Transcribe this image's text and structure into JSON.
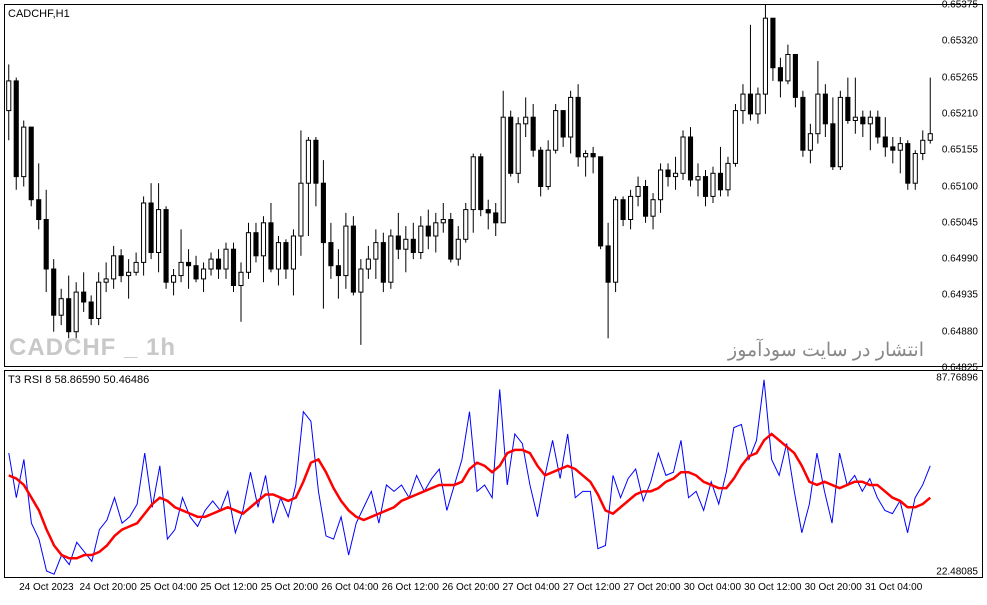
{
  "price_chart": {
    "title": "CADCHF,H1",
    "watermark_left": "CADCHF _ 1h",
    "watermark_right": "انتشار در سایت سودآموز",
    "ymin": 0.64825,
    "ymax": 0.65375,
    "yticks": [
      0.64825,
      0.6488,
      0.64935,
      0.6499,
      0.65045,
      0.651,
      0.65155,
      0.6521,
      0.65265,
      0.6532,
      0.65375
    ],
    "candle_border": "#000000",
    "candle_up_fill": "#ffffff",
    "candle_down_fill": "#000000",
    "candles": [
      {
        "o": 0.65215,
        "h": 0.65285,
        "l": 0.6517,
        "c": 0.6526
      },
      {
        "o": 0.6526,
        "h": 0.65265,
        "l": 0.65095,
        "c": 0.65115
      },
      {
        "o": 0.65115,
        "h": 0.652,
        "l": 0.651,
        "c": 0.6519
      },
      {
        "o": 0.6519,
        "h": 0.6519,
        "l": 0.6507,
        "c": 0.6508
      },
      {
        "o": 0.6508,
        "h": 0.65135,
        "l": 0.65035,
        "c": 0.6505
      },
      {
        "o": 0.6505,
        "h": 0.65095,
        "l": 0.6494,
        "c": 0.64975
      },
      {
        "o": 0.64975,
        "h": 0.6499,
        "l": 0.6488,
        "c": 0.64905
      },
      {
        "o": 0.64905,
        "h": 0.64945,
        "l": 0.6489,
        "c": 0.6493
      },
      {
        "o": 0.6493,
        "h": 0.64965,
        "l": 0.6487,
        "c": 0.6488
      },
      {
        "o": 0.6488,
        "h": 0.64955,
        "l": 0.6487,
        "c": 0.6494
      },
      {
        "o": 0.6494,
        "h": 0.6497,
        "l": 0.6491,
        "c": 0.64925
      },
      {
        "o": 0.64925,
        "h": 0.64935,
        "l": 0.6489,
        "c": 0.649
      },
      {
        "o": 0.649,
        "h": 0.6497,
        "l": 0.6489,
        "c": 0.64955
      },
      {
        "o": 0.64955,
        "h": 0.64985,
        "l": 0.6494,
        "c": 0.6496
      },
      {
        "o": 0.6496,
        "h": 0.6501,
        "l": 0.64945,
        "c": 0.64995
      },
      {
        "o": 0.64995,
        "h": 0.65005,
        "l": 0.64955,
        "c": 0.64965
      },
      {
        "o": 0.64965,
        "h": 0.6499,
        "l": 0.6493,
        "c": 0.6497
      },
      {
        "o": 0.6497,
        "h": 0.65,
        "l": 0.64965,
        "c": 0.64985
      },
      {
        "o": 0.64985,
        "h": 0.65085,
        "l": 0.64965,
        "c": 0.65075
      },
      {
        "o": 0.65075,
        "h": 0.65105,
        "l": 0.6499,
        "c": 0.65
      },
      {
        "o": 0.65,
        "h": 0.65105,
        "l": 0.6497,
        "c": 0.65065
      },
      {
        "o": 0.65065,
        "h": 0.6507,
        "l": 0.64945,
        "c": 0.64955
      },
      {
        "o": 0.64955,
        "h": 0.64975,
        "l": 0.64935,
        "c": 0.64965
      },
      {
        "o": 0.64965,
        "h": 0.65035,
        "l": 0.64955,
        "c": 0.64985
      },
      {
        "o": 0.64985,
        "h": 0.65005,
        "l": 0.64945,
        "c": 0.6498
      },
      {
        "o": 0.6498,
        "h": 0.64995,
        "l": 0.64955,
        "c": 0.6496
      },
      {
        "o": 0.6496,
        "h": 0.64985,
        "l": 0.6494,
        "c": 0.64975
      },
      {
        "o": 0.64975,
        "h": 0.65,
        "l": 0.64965,
        "c": 0.6499
      },
      {
        "o": 0.6499,
        "h": 0.65005,
        "l": 0.6496,
        "c": 0.64975
      },
      {
        "o": 0.64975,
        "h": 0.65015,
        "l": 0.6496,
        "c": 0.65005
      },
      {
        "o": 0.65005,
        "h": 0.65015,
        "l": 0.6494,
        "c": 0.6495
      },
      {
        "o": 0.6495,
        "h": 0.64985,
        "l": 0.64895,
        "c": 0.6497
      },
      {
        "o": 0.6497,
        "h": 0.65045,
        "l": 0.6496,
        "c": 0.6503
      },
      {
        "o": 0.6503,
        "h": 0.65045,
        "l": 0.64985,
        "c": 0.64995
      },
      {
        "o": 0.64995,
        "h": 0.65055,
        "l": 0.64955,
        "c": 0.65045
      },
      {
        "o": 0.65045,
        "h": 0.65075,
        "l": 0.6497,
        "c": 0.64975
      },
      {
        "o": 0.64975,
        "h": 0.65025,
        "l": 0.6495,
        "c": 0.65015
      },
      {
        "o": 0.65015,
        "h": 0.6502,
        "l": 0.6496,
        "c": 0.64975
      },
      {
        "o": 0.64975,
        "h": 0.65035,
        "l": 0.64935,
        "c": 0.65025
      },
      {
        "o": 0.65025,
        "h": 0.65185,
        "l": 0.64995,
        "c": 0.65105
      },
      {
        "o": 0.65105,
        "h": 0.65175,
        "l": 0.65025,
        "c": 0.6517
      },
      {
        "o": 0.6517,
        "h": 0.65175,
        "l": 0.6507,
        "c": 0.65105
      },
      {
        "o": 0.65105,
        "h": 0.6514,
        "l": 0.64915,
        "c": 0.65015
      },
      {
        "o": 0.65015,
        "h": 0.65045,
        "l": 0.6496,
        "c": 0.6498
      },
      {
        "o": 0.6498,
        "h": 0.65005,
        "l": 0.6493,
        "c": 0.64965
      },
      {
        "o": 0.64965,
        "h": 0.6506,
        "l": 0.64945,
        "c": 0.6504
      },
      {
        "o": 0.6504,
        "h": 0.65055,
        "l": 0.64935,
        "c": 0.6494
      },
      {
        "o": 0.6494,
        "h": 0.6499,
        "l": 0.6486,
        "c": 0.64975
      },
      {
        "o": 0.64975,
        "h": 0.6501,
        "l": 0.6496,
        "c": 0.6499
      },
      {
        "o": 0.6499,
        "h": 0.65035,
        "l": 0.6496,
        "c": 0.65015
      },
      {
        "o": 0.65015,
        "h": 0.6503,
        "l": 0.6494,
        "c": 0.64955
      },
      {
        "o": 0.64955,
        "h": 0.65035,
        "l": 0.64945,
        "c": 0.65025
      },
      {
        "o": 0.65025,
        "h": 0.6506,
        "l": 0.6499,
        "c": 0.65005
      },
      {
        "o": 0.65005,
        "h": 0.6504,
        "l": 0.6497,
        "c": 0.6502
      },
      {
        "o": 0.6502,
        "h": 0.65045,
        "l": 0.6499,
        "c": 0.65
      },
      {
        "o": 0.65,
        "h": 0.65055,
        "l": 0.6499,
        "c": 0.6504
      },
      {
        "o": 0.6504,
        "h": 0.65065,
        "l": 0.65005,
        "c": 0.65025
      },
      {
        "o": 0.65025,
        "h": 0.6506,
        "l": 0.65,
        "c": 0.65045
      },
      {
        "o": 0.65045,
        "h": 0.65075,
        "l": 0.6503,
        "c": 0.6505
      },
      {
        "o": 0.6505,
        "h": 0.6506,
        "l": 0.64985,
        "c": 0.6499
      },
      {
        "o": 0.6499,
        "h": 0.6504,
        "l": 0.6498,
        "c": 0.6502
      },
      {
        "o": 0.6502,
        "h": 0.65075,
        "l": 0.65015,
        "c": 0.65065
      },
      {
        "o": 0.65065,
        "h": 0.6515,
        "l": 0.6503,
        "c": 0.65145
      },
      {
        "o": 0.65145,
        "h": 0.6515,
        "l": 0.65055,
        "c": 0.65065
      },
      {
        "o": 0.65065,
        "h": 0.6508,
        "l": 0.65035,
        "c": 0.6506
      },
      {
        "o": 0.6506,
        "h": 0.65075,
        "l": 0.65025,
        "c": 0.65045
      },
      {
        "o": 0.65045,
        "h": 0.65245,
        "l": 0.65045,
        "c": 0.65205
      },
      {
        "o": 0.65205,
        "h": 0.65215,
        "l": 0.65115,
        "c": 0.6512
      },
      {
        "o": 0.6512,
        "h": 0.65205,
        "l": 0.65105,
        "c": 0.65195
      },
      {
        "o": 0.65195,
        "h": 0.65235,
        "l": 0.65175,
        "c": 0.65205
      },
      {
        "o": 0.65205,
        "h": 0.65225,
        "l": 0.65145,
        "c": 0.65155
      },
      {
        "o": 0.65155,
        "h": 0.6516,
        "l": 0.65085,
        "c": 0.651
      },
      {
        "o": 0.651,
        "h": 0.6517,
        "l": 0.65095,
        "c": 0.65155
      },
      {
        "o": 0.65155,
        "h": 0.65225,
        "l": 0.6515,
        "c": 0.65215
      },
      {
        "o": 0.65215,
        "h": 0.65215,
        "l": 0.6516,
        "c": 0.65175
      },
      {
        "o": 0.65175,
        "h": 0.65245,
        "l": 0.6515,
        "c": 0.65235
      },
      {
        "o": 0.65235,
        "h": 0.65255,
        "l": 0.6513,
        "c": 0.65145
      },
      {
        "o": 0.65145,
        "h": 0.65155,
        "l": 0.65115,
        "c": 0.6515
      },
      {
        "o": 0.6515,
        "h": 0.6516,
        "l": 0.6512,
        "c": 0.65145
      },
      {
        "o": 0.65145,
        "h": 0.65145,
        "l": 0.65005,
        "c": 0.6501
      },
      {
        "o": 0.6501,
        "h": 0.65045,
        "l": 0.6487,
        "c": 0.64955
      },
      {
        "o": 0.64955,
        "h": 0.65085,
        "l": 0.6494,
        "c": 0.6508
      },
      {
        "o": 0.6508,
        "h": 0.65085,
        "l": 0.6504,
        "c": 0.6505
      },
      {
        "o": 0.6505,
        "h": 0.65095,
        "l": 0.65035,
        "c": 0.65085
      },
      {
        "o": 0.65085,
        "h": 0.65115,
        "l": 0.6507,
        "c": 0.651
      },
      {
        "o": 0.651,
        "h": 0.6511,
        "l": 0.65045,
        "c": 0.65055
      },
      {
        "o": 0.65055,
        "h": 0.6509,
        "l": 0.65035,
        "c": 0.6508
      },
      {
        "o": 0.6508,
        "h": 0.65135,
        "l": 0.6506,
        "c": 0.65125
      },
      {
        "o": 0.65125,
        "h": 0.65135,
        "l": 0.651,
        "c": 0.65115
      },
      {
        "o": 0.65115,
        "h": 0.65145,
        "l": 0.65095,
        "c": 0.6512
      },
      {
        "o": 0.6512,
        "h": 0.65185,
        "l": 0.6511,
        "c": 0.65175
      },
      {
        "o": 0.65175,
        "h": 0.6519,
        "l": 0.651,
        "c": 0.6511
      },
      {
        "o": 0.6511,
        "h": 0.65135,
        "l": 0.65085,
        "c": 0.65115
      },
      {
        "o": 0.65115,
        "h": 0.65125,
        "l": 0.6507,
        "c": 0.65085
      },
      {
        "o": 0.65085,
        "h": 0.6513,
        "l": 0.65075,
        "c": 0.6512
      },
      {
        "o": 0.6512,
        "h": 0.6516,
        "l": 0.65085,
        "c": 0.65095
      },
      {
        "o": 0.65095,
        "h": 0.65145,
        "l": 0.65085,
        "c": 0.65135
      },
      {
        "o": 0.65135,
        "h": 0.65225,
        "l": 0.6513,
        "c": 0.65215
      },
      {
        "o": 0.65215,
        "h": 0.65255,
        "l": 0.65195,
        "c": 0.6524
      },
      {
        "o": 0.6524,
        "h": 0.65345,
        "l": 0.652,
        "c": 0.6521
      },
      {
        "o": 0.6521,
        "h": 0.6525,
        "l": 0.65195,
        "c": 0.6524
      },
      {
        "o": 0.6524,
        "h": 0.65375,
        "l": 0.6521,
        "c": 0.65355
      },
      {
        "o": 0.65355,
        "h": 0.65355,
        "l": 0.6526,
        "c": 0.6528
      },
      {
        "o": 0.6528,
        "h": 0.65295,
        "l": 0.65235,
        "c": 0.6526
      },
      {
        "o": 0.6526,
        "h": 0.65315,
        "l": 0.65255,
        "c": 0.653
      },
      {
        "o": 0.653,
        "h": 0.653,
        "l": 0.6522,
        "c": 0.65235
      },
      {
        "o": 0.65235,
        "h": 0.65245,
        "l": 0.65145,
        "c": 0.65155
      },
      {
        "o": 0.65155,
        "h": 0.65195,
        "l": 0.65135,
        "c": 0.6518
      },
      {
        "o": 0.6518,
        "h": 0.6529,
        "l": 0.65165,
        "c": 0.6524
      },
      {
        "o": 0.6524,
        "h": 0.65255,
        "l": 0.65175,
        "c": 0.65195
      },
      {
        "o": 0.65195,
        "h": 0.65235,
        "l": 0.65125,
        "c": 0.6513
      },
      {
        "o": 0.6513,
        "h": 0.65245,
        "l": 0.65125,
        "c": 0.65235
      },
      {
        "o": 0.65235,
        "h": 0.65265,
        "l": 0.65195,
        "c": 0.652
      },
      {
        "o": 0.652,
        "h": 0.65265,
        "l": 0.6518,
        "c": 0.65205
      },
      {
        "o": 0.65205,
        "h": 0.65215,
        "l": 0.65175,
        "c": 0.65195
      },
      {
        "o": 0.65195,
        "h": 0.65215,
        "l": 0.65155,
        "c": 0.65205
      },
      {
        "o": 0.65205,
        "h": 0.65215,
        "l": 0.65165,
        "c": 0.65175
      },
      {
        "o": 0.65175,
        "h": 0.65205,
        "l": 0.65145,
        "c": 0.6516
      },
      {
        "o": 0.6516,
        "h": 0.65175,
        "l": 0.65135,
        "c": 0.65155
      },
      {
        "o": 0.65155,
        "h": 0.65175,
        "l": 0.6512,
        "c": 0.65165
      },
      {
        "o": 0.65165,
        "h": 0.6517,
        "l": 0.65095,
        "c": 0.65105
      },
      {
        "o": 0.65105,
        "h": 0.65155,
        "l": 0.65095,
        "c": 0.6515
      },
      {
        "o": 0.6515,
        "h": 0.65185,
        "l": 0.6514,
        "c": 0.6517
      },
      {
        "o": 0.6517,
        "h": 0.65265,
        "l": 0.65165,
        "c": 0.6518
      }
    ]
  },
  "indicator_chart": {
    "title": "T3 RSI 8 58.86590 50.46486",
    "ymin": 22.48085,
    "ymax": 87.76896,
    "yticks_left": [],
    "ytick_top": 87.76896,
    "ytick_bottom": 22.48085,
    "line1_color": "#0000ff",
    "line1_width": 1,
    "line2_color": "#ff0000",
    "line2_width": 2.5,
    "rsi": [
      62,
      48,
      60,
      40,
      35,
      25,
      24,
      30,
      27,
      34,
      31,
      28,
      38,
      41,
      48,
      40,
      42,
      46,
      62,
      45,
      58,
      35,
      38,
      48,
      42,
      39,
      44,
      47,
      44,
      50,
      37,
      44,
      56,
      45,
      55,
      40,
      48,
      42,
      52,
      75,
      72,
      50,
      36,
      35,
      42,
      30,
      40,
      45,
      50,
      40,
      52,
      50,
      52,
      48,
      55,
      50,
      54,
      57,
      44,
      52,
      60,
      75,
      50,
      52,
      48,
      82,
      52,
      68,
      65,
      52,
      42,
      55,
      66,
      54,
      68,
      48,
      50,
      50,
      32,
      33,
      55,
      48,
      54,
      57,
      47,
      53,
      62,
      55,
      56,
      66,
      48,
      50,
      44,
      53,
      46,
      56,
      70,
      71,
      60,
      66,
      85,
      60,
      55,
      65,
      50,
      37,
      46,
      62,
      50,
      40,
      62,
      52,
      55,
      50,
      54,
      48,
      44,
      43,
      47,
      37,
      48,
      52,
      58
    ],
    "t3": [
      55,
      54,
      52,
      48,
      44,
      38,
      33,
      30,
      29,
      29,
      30,
      30,
      31,
      33,
      36,
      38,
      39,
      40,
      43,
      46,
      48,
      47,
      45,
      44,
      43,
      42,
      42,
      43,
      44,
      45,
      44,
      43,
      45,
      47,
      49,
      49,
      48,
      47,
      48,
      53,
      59,
      60,
      56,
      51,
      47,
      44,
      42,
      41,
      42,
      43,
      44,
      45,
      47,
      48,
      49,
      50,
      51,
      52,
      52,
      52,
      53,
      57,
      59,
      58,
      56,
      58,
      62,
      63,
      63,
      62,
      58,
      55,
      56,
      57,
      58,
      57,
      55,
      53,
      49,
      44,
      43,
      45,
      47,
      49,
      50,
      50,
      51,
      53,
      54,
      56,
      56,
      55,
      53,
      52,
      51,
      51,
      54,
      58,
      61,
      62,
      66,
      68,
      66,
      64,
      62,
      58,
      53,
      52,
      53,
      52,
      51,
      52,
      53,
      53,
      52,
      52,
      50,
      48,
      47,
      45,
      45,
      46,
      48
    ]
  },
  "xaxis": {
    "labels": [
      "24 Oct 2023",
      "24 Oct 20:00",
      "25 Oct 04:00",
      "25 Oct 12:00",
      "25 Oct 20:00",
      "26 Oct 04:00",
      "26 Oct 12:00",
      "26 Oct 20:00",
      "27 Oct 04:00",
      "27 Oct 12:00",
      "27 Oct 20:00",
      "30 Oct 04:00",
      "30 Oct 12:00",
      "30 Oct 20:00",
      "31 Oct 04:00"
    ]
  }
}
